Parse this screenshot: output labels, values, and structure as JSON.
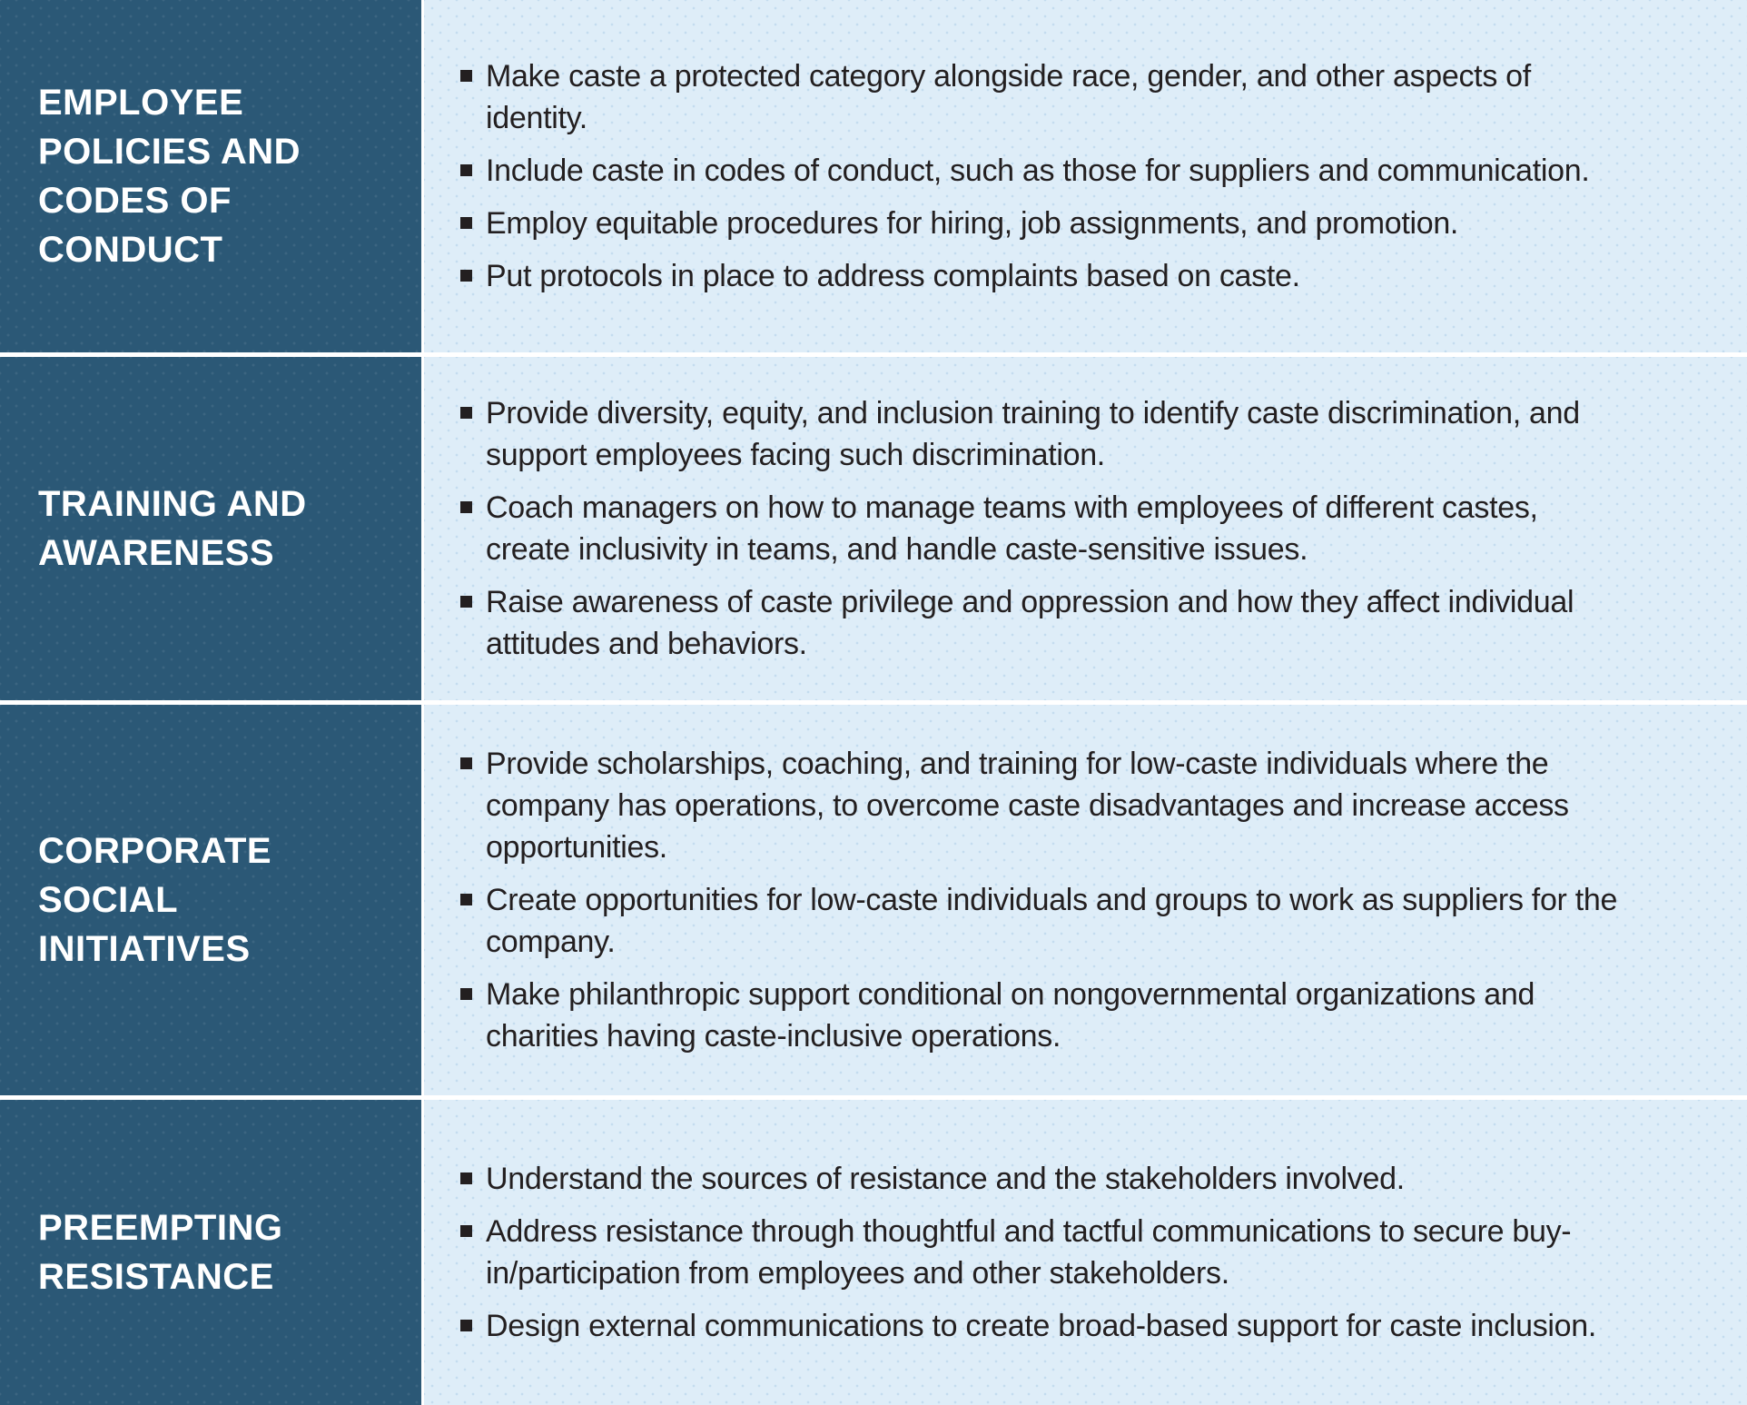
{
  "table": {
    "rows": [
      {
        "header": "EMPLOYEE POLICIES AND CODES OF CONDUCT",
        "bullets": [
          "Make caste a protected category alongside race, gender, and other aspects of identity.",
          "Include caste in codes of conduct, such as those for suppliers and communication.",
          "Employ equitable procedures for hiring, job assignments, and promotion.",
          "Put protocols in place to address complaints based on caste."
        ]
      },
      {
        "header": "TRAINING AND AWARENESS",
        "bullets": [
          "Provide diversity, equity, and inclusion training to identify caste discrimination, and support employees facing such discrimination.",
          "Coach managers on how to manage teams with employees of different castes, create inclusivity in teams, and handle caste-sensitive issues.",
          "Raise awareness of caste privilege and oppression and how they affect individual attitudes and behaviors."
        ]
      },
      {
        "header": "CORPORATE SOCIAL INITIATIVES",
        "bullets": [
          "Provide scholarships, coaching, and training for low-caste individuals where the company has operations, to overcome caste disadvantages and increase access opportunities.",
          "Create opportunities for low-caste individuals and groups to work as suppliers for the company.",
          "Make philanthropic support conditional on nongovernmental organizations and charities having caste-inclusive operations."
        ]
      },
      {
        "header": "PREEMPTING RESISTANCE",
        "bullets": [
          "Understand the sources of resistance and the stakeholders involved.",
          "Address resistance through thoughtful and tactful communications to secure buy-in/participation from employees and other stakeholders.",
          "Design external communications to create broad-based support for caste inclusion."
        ]
      }
    ]
  },
  "colors": {
    "header_bg": "#2b5876",
    "panel_bg": "#deedf8",
    "divider": "#ffffff",
    "body_text": "#231f20",
    "header_text": "#ffffff"
  }
}
